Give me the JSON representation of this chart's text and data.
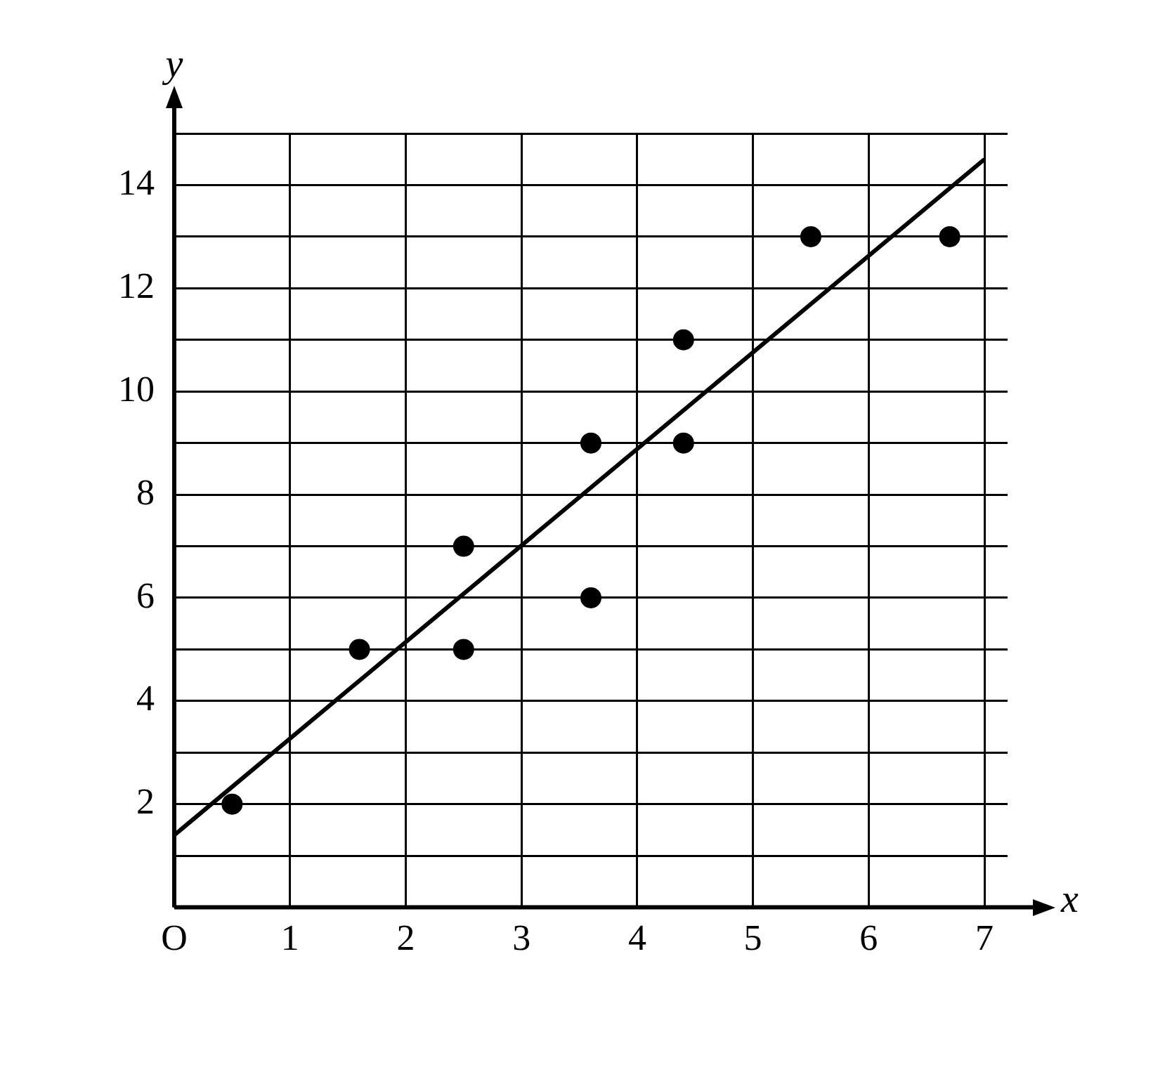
{
  "chart_data": {
    "type": "scatter",
    "xlabel": "x",
    "ylabel": "y",
    "xlim": [
      0,
      7.2
    ],
    "ylim": [
      0,
      15
    ],
    "xticks": [
      {
        "value": 0,
        "label": "O"
      },
      1,
      2,
      3,
      4,
      5,
      6,
      7
    ],
    "yticks": [
      {
        "value": 0,
        "label": null
      },
      {
        "value": 1,
        "label": null
      },
      2,
      {
        "value": 3,
        "label": null
      },
      4,
      {
        "value": 5,
        "label": null
      },
      6,
      {
        "value": 7,
        "label": null
      },
      8,
      {
        "value": 9,
        "label": null
      },
      10,
      {
        "value": 11,
        "label": null
      },
      12,
      {
        "value": 13,
        "label": null
      },
      14,
      {
        "value": 15,
        "label": null
      }
    ],
    "grid": true,
    "legend": false,
    "marker": "circle",
    "series": [
      {
        "color": "#000000",
        "x": [
          0.5,
          1.6,
          2.5,
          2.5,
          3.6,
          3.6,
          4.4,
          4.4,
          5.5,
          6.7
        ],
        "values": [
          2,
          5,
          7,
          5,
          9,
          6,
          11,
          9,
          13,
          13
        ]
      },
      {
        "type": "line",
        "color": "#000000",
        "marker": "none",
        "line_style": "solid",
        "x": [
          0,
          7
        ],
        "values": [
          1.4,
          14.5
        ]
      }
    ]
  }
}
